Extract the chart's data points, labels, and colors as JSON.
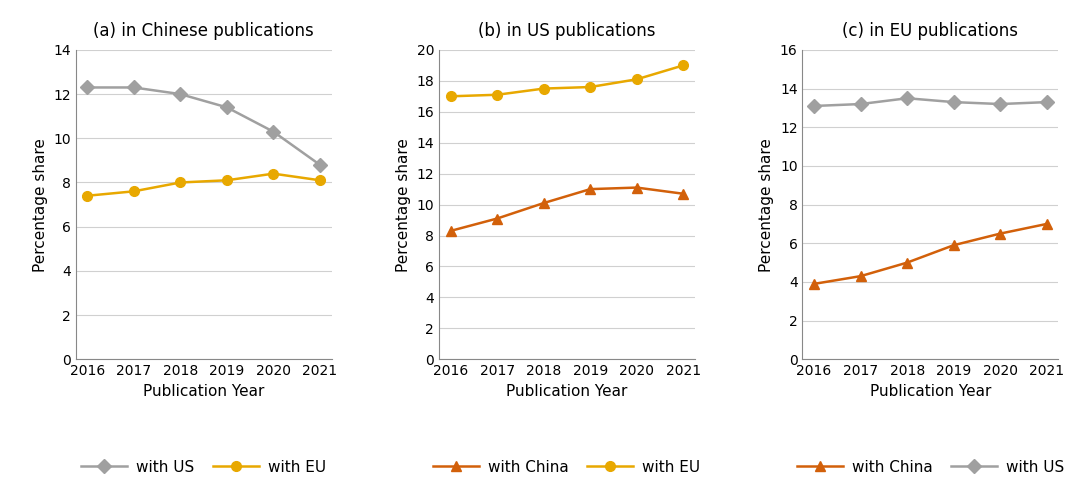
{
  "years": [
    2016,
    2017,
    2018,
    2019,
    2020,
    2021
  ],
  "panel_a": {
    "title": "(a) in Chinese publications",
    "with_us": [
      12.3,
      12.3,
      12.0,
      11.4,
      10.3,
      8.8
    ],
    "with_eu": [
      7.4,
      7.6,
      8.0,
      8.1,
      8.4,
      8.1
    ],
    "ylim": [
      0,
      14
    ],
    "yticks": [
      0,
      2,
      4,
      6,
      8,
      10,
      12,
      14
    ]
  },
  "panel_b": {
    "title": "(b) in US publications",
    "with_china": [
      8.3,
      9.1,
      10.1,
      11.0,
      11.1,
      10.7
    ],
    "with_eu": [
      17.0,
      17.1,
      17.5,
      17.6,
      18.1,
      19.0
    ],
    "ylim": [
      0,
      20
    ],
    "yticks": [
      0,
      2,
      4,
      6,
      8,
      10,
      12,
      14,
      16,
      18,
      20
    ]
  },
  "panel_c": {
    "title": "(c) in EU publications",
    "with_china": [
      3.9,
      4.3,
      5.0,
      5.9,
      6.5,
      7.0
    ],
    "with_us": [
      13.1,
      13.2,
      13.5,
      13.3,
      13.2,
      13.3
    ],
    "ylim": [
      0,
      16
    ],
    "yticks": [
      0,
      2,
      4,
      6,
      8,
      10,
      12,
      14,
      16
    ]
  },
  "colors": {
    "gray": "#a0a0a0",
    "yellow": "#E8A800",
    "orange": "#D2600A"
  },
  "xlabel": "Publication Year",
  "ylabel": "Percentage share",
  "legend_a": [
    {
      "label": "with US",
      "color": "#a0a0a0",
      "marker": "D"
    },
    {
      "label": "with EU",
      "color": "#E8A800",
      "marker": "o"
    }
  ],
  "legend_b": [
    {
      "label": "with China",
      "color": "#D2600A",
      "marker": "^"
    },
    {
      "label": "with EU",
      "color": "#E8A800",
      "marker": "o"
    }
  ],
  "legend_c": [
    {
      "label": "with China",
      "color": "#D2600A",
      "marker": "^"
    },
    {
      "label": "with US",
      "color": "#a0a0a0",
      "marker": "D"
    }
  ],
  "bg_color": "#ffffff",
  "grid_color": "#d0d0d0",
  "spine_color": "#888888",
  "title_fontsize": 12,
  "label_fontsize": 11,
  "tick_fontsize": 10,
  "legend_fontsize": 11,
  "marker_size": 7,
  "line_width": 1.8
}
